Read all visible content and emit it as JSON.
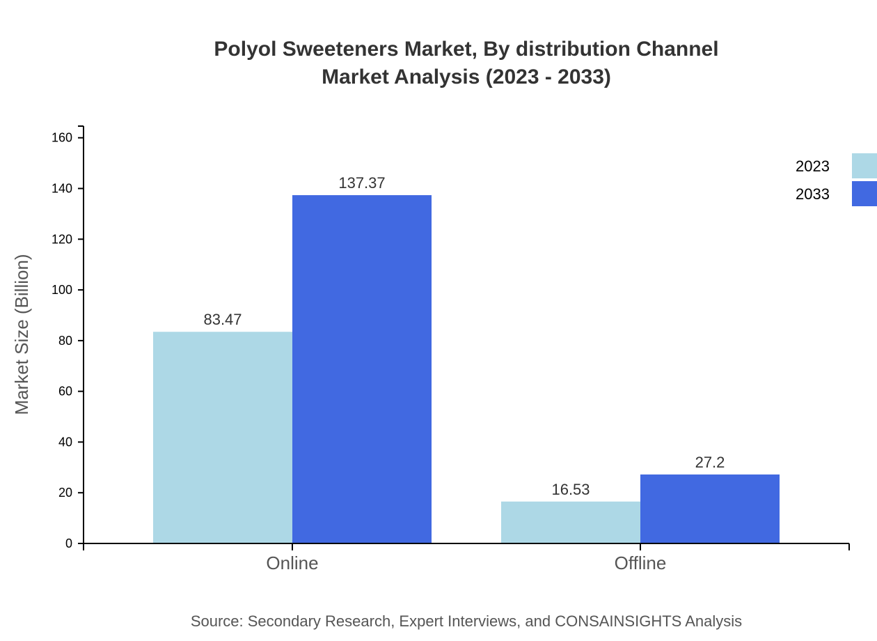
{
  "chart_data": {
    "type": "bar",
    "title_lines": [
      "Polyol Sweeteners Market, By distribution Channel",
      "Market Analysis (2023 - 2033)"
    ],
    "xlabel": "",
    "ylabel": "Market Size (Billion)",
    "categories": [
      "Online",
      "Offline"
    ],
    "series": [
      {
        "name": "2023",
        "color": "#ADD8E6",
        "values": [
          83.47,
          16.53
        ],
        "labels": [
          "83.47",
          "16.53"
        ]
      },
      {
        "name": "2033",
        "color": "#4169E1",
        "values": [
          137.37,
          27.2
        ],
        "labels": [
          "137.37",
          "27.2"
        ]
      }
    ],
    "ylim": [
      0,
      164.6
    ],
    "yticks": [
      0,
      20,
      40,
      60,
      80,
      100,
      120,
      140,
      160
    ],
    "grid": false,
    "legend_placement": "top-right",
    "source": "Source: Secondary Research, Expert Interviews, and CONSAINSIGHTS Analysis"
  }
}
